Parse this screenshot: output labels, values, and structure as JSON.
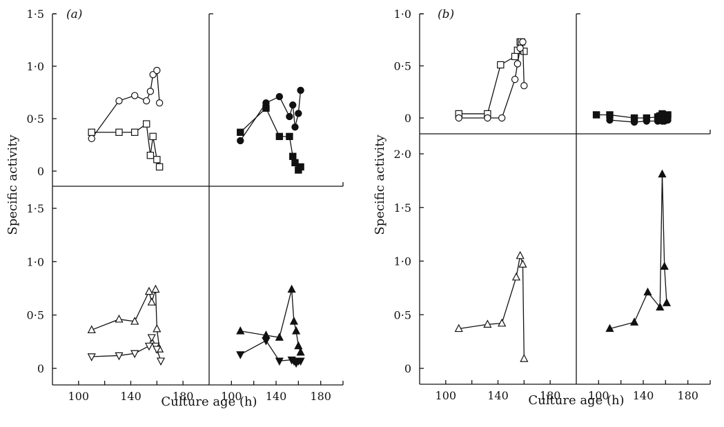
{
  "figure": {
    "panel_a_label": "(a)",
    "panel_b_label": "(b)",
    "ylabel": "Specific activity",
    "xlabel": "Culture age (h)"
  },
  "chart_data": [
    {
      "id": "a-top-left",
      "type": "line",
      "xlim": [
        80,
        200
      ],
      "ylim": [
        -0.15,
        1.5
      ],
      "xticks": [],
      "yticks": [
        0,
        0.5,
        1.0,
        1.5
      ],
      "ytick_labels": [
        "0",
        "0·5",
        "1·0",
        "1·5"
      ],
      "series": [
        {
          "marker": "circle-open",
          "x": [
            110,
            131,
            143,
            152,
            155,
            157,
            160,
            162
          ],
          "y": [
            0.31,
            0.67,
            0.72,
            0.67,
            0.76,
            0.92,
            0.96,
            0.65
          ]
        },
        {
          "marker": "square-open",
          "x": [
            110,
            131,
            143,
            152,
            155,
            157,
            160,
            162
          ],
          "y": [
            0.37,
            0.37,
            0.37,
            0.45,
            0.15,
            0.33,
            0.11,
            0.04
          ]
        }
      ]
    },
    {
      "id": "a-top-right",
      "type": "line",
      "xlim": [
        80,
        200
      ],
      "ylim": [
        -0.15,
        1.5
      ],
      "xticks": [],
      "yticks": [],
      "series": [
        {
          "marker": "circle-filled",
          "x": [
            108,
            131,
            143,
            152,
            155,
            157,
            160,
            162
          ],
          "y": [
            0.29,
            0.65,
            0.71,
            0.52,
            0.63,
            0.42,
            0.55,
            0.77
          ]
        },
        {
          "marker": "square-filled",
          "x": [
            108,
            131,
            143,
            152,
            155,
            157,
            160,
            162
          ],
          "y": [
            0.37,
            0.6,
            0.33,
            0.33,
            0.14,
            0.08,
            0.01,
            0.04
          ]
        }
      ]
    },
    {
      "id": "a-bottom-left",
      "type": "line",
      "xlim": [
        80,
        200
      ],
      "ylim": [
        -0.1,
        1.6
      ],
      "xticks": [
        100,
        140,
        180
      ],
      "xtick_labels": [
        "100",
        "140",
        "180"
      ],
      "yticks": [
        0,
        0.5,
        1.0,
        1.5
      ],
      "ytick_labels": [
        "0",
        "0·5",
        "1·0",
        "1·5"
      ],
      "series": [
        {
          "marker": "triangle-up-open",
          "x": [
            110,
            131,
            143,
            154,
            156,
            159,
            160,
            162
          ],
          "y": [
            0.36,
            0.46,
            0.44,
            0.72,
            0.62,
            0.74,
            0.37,
            0.18
          ]
        },
        {
          "marker": "triangle-down-open",
          "x": [
            110,
            131,
            143,
            154,
            156,
            159,
            160,
            163
          ],
          "y": [
            0.11,
            0.12,
            0.14,
            0.21,
            0.29,
            0.21,
            0.18,
            0.07
          ]
        }
      ]
    },
    {
      "id": "a-bottom-right",
      "type": "line",
      "xlim": [
        80,
        200
      ],
      "ylim": [
        -0.1,
        1.6
      ],
      "xticks": [
        100,
        140,
        180
      ],
      "xtick_labels": [
        "100",
        "140",
        "180"
      ],
      "yticks": [],
      "series": [
        {
          "marker": "triangle-up-filled",
          "x": [
            108,
            131,
            143,
            154,
            156,
            158,
            160,
            162
          ],
          "y": [
            0.35,
            0.31,
            0.29,
            0.74,
            0.44,
            0.35,
            0.21,
            0.15
          ]
        },
        {
          "marker": "triangle-down-filled",
          "x": [
            108,
            131,
            143,
            154,
            156,
            158,
            160,
            162
          ],
          "y": [
            0.13,
            0.26,
            0.07,
            0.08,
            0.07,
            0.05,
            0.07,
            0.07
          ]
        }
      ]
    },
    {
      "id": "b-top-left",
      "type": "line",
      "xlim": [
        80,
        200
      ],
      "ylim": [
        -0.15,
        1.0
      ],
      "xticks": [],
      "yticks": [
        0,
        0.5,
        1.0
      ],
      "ytick_labels": [
        "0",
        "0·5",
        "1·0"
      ],
      "series": [
        {
          "marker": "square-open",
          "x": [
            110,
            132,
            142,
            153,
            155,
            157,
            158,
            160
          ],
          "y": [
            0.04,
            0.04,
            0.51,
            0.59,
            0.65,
            0.73,
            0.73,
            0.64
          ]
        },
        {
          "marker": "circle-open",
          "x": [
            110,
            132,
            143,
            153,
            155,
            157,
            159,
            160
          ],
          "y": [
            0.0,
            0.0,
            0.0,
            0.37,
            0.52,
            0.67,
            0.73,
            0.31
          ]
        }
      ]
    },
    {
      "id": "b-top-right",
      "type": "line",
      "xlim": [
        80,
        200
      ],
      "ylim": [
        -0.15,
        1.0
      ],
      "xticks": [],
      "yticks": [],
      "series": [
        {
          "marker": "square-filled",
          "x": [
            98,
            110,
            132,
            143,
            153,
            155,
            157,
            159,
            162
          ],
          "y": [
            0.03,
            0.03,
            0.0,
            0.0,
            0.01,
            0.02,
            0.04,
            0.02,
            0.03
          ]
        },
        {
          "marker": "circle-filled",
          "x": [
            110,
            132,
            143,
            153,
            155,
            157,
            159,
            162
          ],
          "y": [
            -0.02,
            -0.04,
            -0.03,
            -0.03,
            -0.02,
            -0.03,
            -0.03,
            -0.02
          ]
        }
      ]
    },
    {
      "id": "b-bottom-left",
      "type": "line",
      "xlim": [
        80,
        200
      ],
      "ylim": [
        -0.1,
        2.1
      ],
      "xticks": [
        100,
        140,
        180
      ],
      "xtick_labels": [
        "100",
        "140",
        "180"
      ],
      "yticks": [
        0,
        0.5,
        1.0,
        1.5,
        2.0
      ],
      "ytick_labels": [
        "0",
        "0·5",
        "1·0",
        "1·5",
        "2·0"
      ],
      "series": [
        {
          "marker": "triangle-up-open",
          "x": [
            110,
            132,
            143,
            154,
            157,
            159,
            160
          ],
          "y": [
            0.37,
            0.41,
            0.42,
            0.85,
            1.05,
            0.97,
            0.09
          ]
        }
      ]
    },
    {
      "id": "b-bottom-right",
      "type": "line",
      "xlim": [
        80,
        200
      ],
      "ylim": [
        -0.1,
        2.1
      ],
      "xticks": [
        100,
        140,
        180
      ],
      "xtick_labels": [
        "100",
        "140",
        "180"
      ],
      "yticks": [],
      "series": [
        {
          "marker": "triangle-up-filled",
          "x": [
            110,
            132,
            144,
            155,
            157,
            159,
            161
          ],
          "y": [
            0.37,
            0.43,
            0.71,
            0.57,
            1.81,
            0.95,
            0.61
          ]
        }
      ]
    }
  ]
}
